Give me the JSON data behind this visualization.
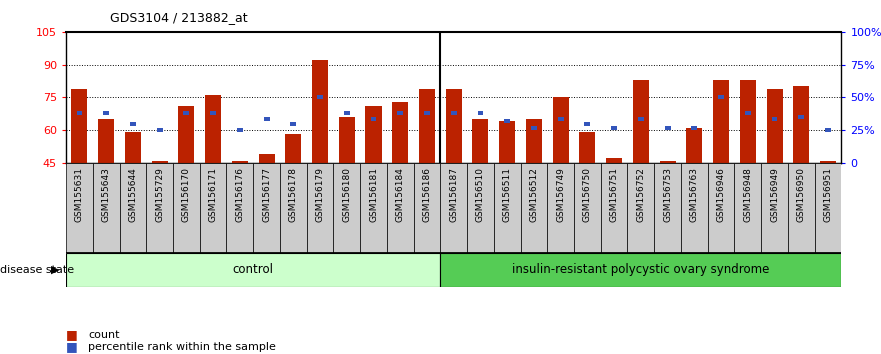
{
  "title": "GDS3104 / 213882_at",
  "samples": [
    "GSM155631",
    "GSM155643",
    "GSM155644",
    "GSM155729",
    "GSM156170",
    "GSM156171",
    "GSM156176",
    "GSM156177",
    "GSM156178",
    "GSM156179",
    "GSM156180",
    "GSM156181",
    "GSM156184",
    "GSM156186",
    "GSM156187",
    "GSM156510",
    "GSM156511",
    "GSM156512",
    "GSM156749",
    "GSM156750",
    "GSM156751",
    "GSM156752",
    "GSM156753",
    "GSM156763",
    "GSM156946",
    "GSM156948",
    "GSM156949",
    "GSM156950",
    "GSM156951"
  ],
  "red_values": [
    79,
    65,
    59,
    46,
    71,
    76,
    46,
    49,
    58,
    92,
    66,
    71,
    73,
    79,
    79,
    65,
    64,
    65,
    75,
    59,
    47,
    83,
    46,
    61,
    83,
    83,
    79,
    80,
    46
  ],
  "blue_values": [
    68,
    68,
    63,
    60,
    68,
    68,
    60,
    65,
    63,
    75,
    68,
    65,
    68,
    68,
    68,
    68,
    64,
    61,
    65,
    63,
    61,
    65,
    61,
    61,
    75,
    68,
    65,
    66,
    60
  ],
  "control_count": 14,
  "ylim_left": [
    45,
    105
  ],
  "ylim_right": [
    0,
    100
  ],
  "yticks_left": [
    45,
    60,
    75,
    90,
    105
  ],
  "yticks_right": [
    0,
    25,
    50,
    75,
    100
  ],
  "ytick_labels_right": [
    "0",
    "25%",
    "50%",
    "75%",
    "100%"
  ],
  "bar_color": "#BB2200",
  "blue_color": "#3355BB",
  "control_label": "control",
  "disease_label": "insulin-resistant polycystic ovary syndrome",
  "legend_count": "count",
  "legend_percentile": "percentile rank within the sample",
  "disease_state_label": "disease state",
  "control_bg": "#CCFFCC",
  "disease_bg": "#55CC55",
  "label_area_bg": "#CCCCCC",
  "grid_color": "#555555",
  "grid_lines": [
    60,
    75,
    90
  ]
}
